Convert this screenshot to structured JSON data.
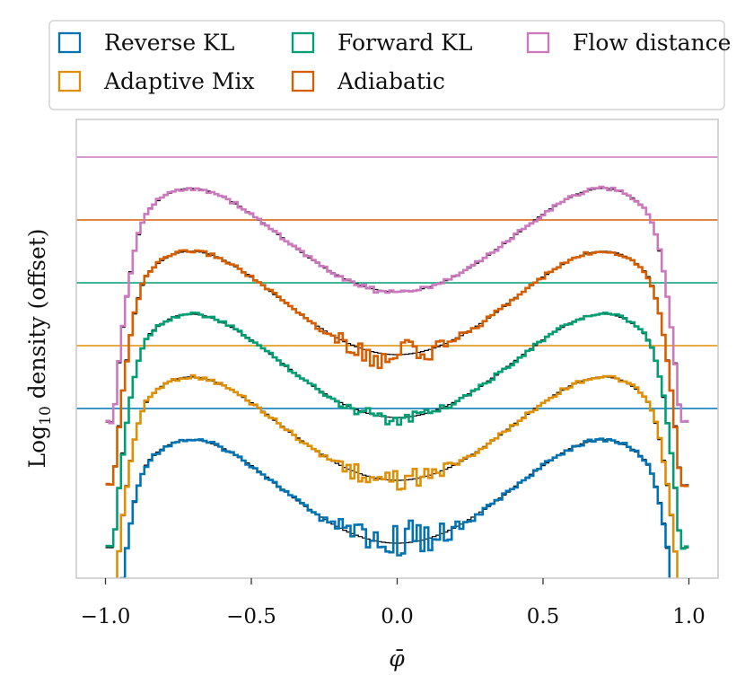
{
  "chart_data": {
    "type": "line",
    "title": "",
    "xlabel": "φ̄",
    "ylabel": "Log",
    "ylabel_sub": "10",
    "ylabel_rest": " density (offset)",
    "xlim": [
      -1.1,
      1.1
    ],
    "x_ticks": [
      -1.0,
      -0.5,
      0.0,
      0.5,
      1.0
    ],
    "x_tick_labels": [
      "−1.0",
      "−0.5",
      "0.0",
      "0.5",
      "1.0"
    ],
    "y_ticks_shown": false,
    "grid": false,
    "legend_position": "top",
    "legend_columns": 3,
    "reference_color": "#000000",
    "series": [
      {
        "name": "Reverse KL",
        "color": "#0173b2",
        "offset": 0,
        "spike_amp": 1.0
      },
      {
        "name": "Adaptive Mix",
        "color": "#de8f05",
        "offset": 1,
        "spike_amp": 0.55
      },
      {
        "name": "Forward KL",
        "color": "#029e73",
        "offset": 2,
        "spike_amp": 0.3
      },
      {
        "name": "Adiabatic",
        "color": "#d55e00",
        "offset": 3,
        "spike_amp": 0.85
      },
      {
        "name": "Flow distance",
        "color": "#cc78bc",
        "offset": 4,
        "spike_amp": 0.1
      }
    ],
    "legend_order": [
      "Reverse KL",
      "Forward KL",
      "Flow distance",
      "Adaptive Mix",
      "Adiabatic"
    ]
  }
}
